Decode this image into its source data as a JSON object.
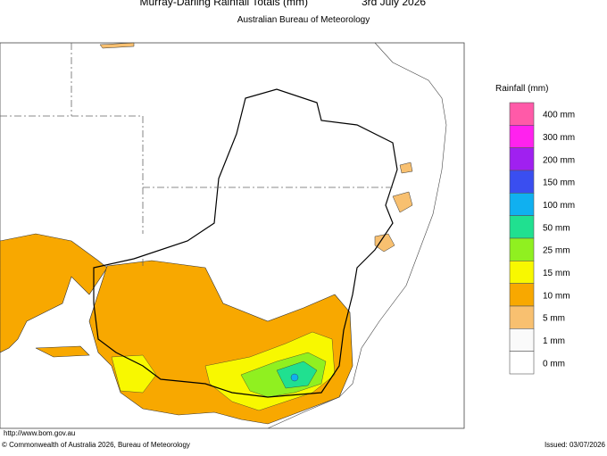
{
  "header": {
    "title": "Murray-Darling Rainfall Totals (mm)",
    "date": "3rd July 2026",
    "subtitle": "Australian Bureau of Meteorology"
  },
  "legend": {
    "title": "Rainfall (mm)",
    "items": [
      {
        "label": "400 mm",
        "color": "#ff5aa8"
      },
      {
        "label": "300 mm",
        "color": "#ff22ee"
      },
      {
        "label": "200 mm",
        "color": "#a020f0"
      },
      {
        "label": "150 mm",
        "color": "#3a4ef0"
      },
      {
        "label": "100 mm",
        "color": "#10b0f0"
      },
      {
        "label": "50 mm",
        "color": "#20e090"
      },
      {
        "label": "25 mm",
        "color": "#90f020"
      },
      {
        "label": "15 mm",
        "color": "#f8f800"
      },
      {
        "label": "10 mm",
        "color": "#f8a800"
      },
      {
        "label": "5 mm",
        "color": "#f8c070"
      },
      {
        "label": "1 mm",
        "color": "#fafafa"
      },
      {
        "label": "0 mm",
        "color": "#ffffff"
      }
    ]
  },
  "footer": {
    "url": "http://www.bom.gov.au",
    "copyright": "© Commonwealth of Australia 2026, Bureau of Meteorology",
    "issued": "Issued: 03/07/2026"
  }
}
